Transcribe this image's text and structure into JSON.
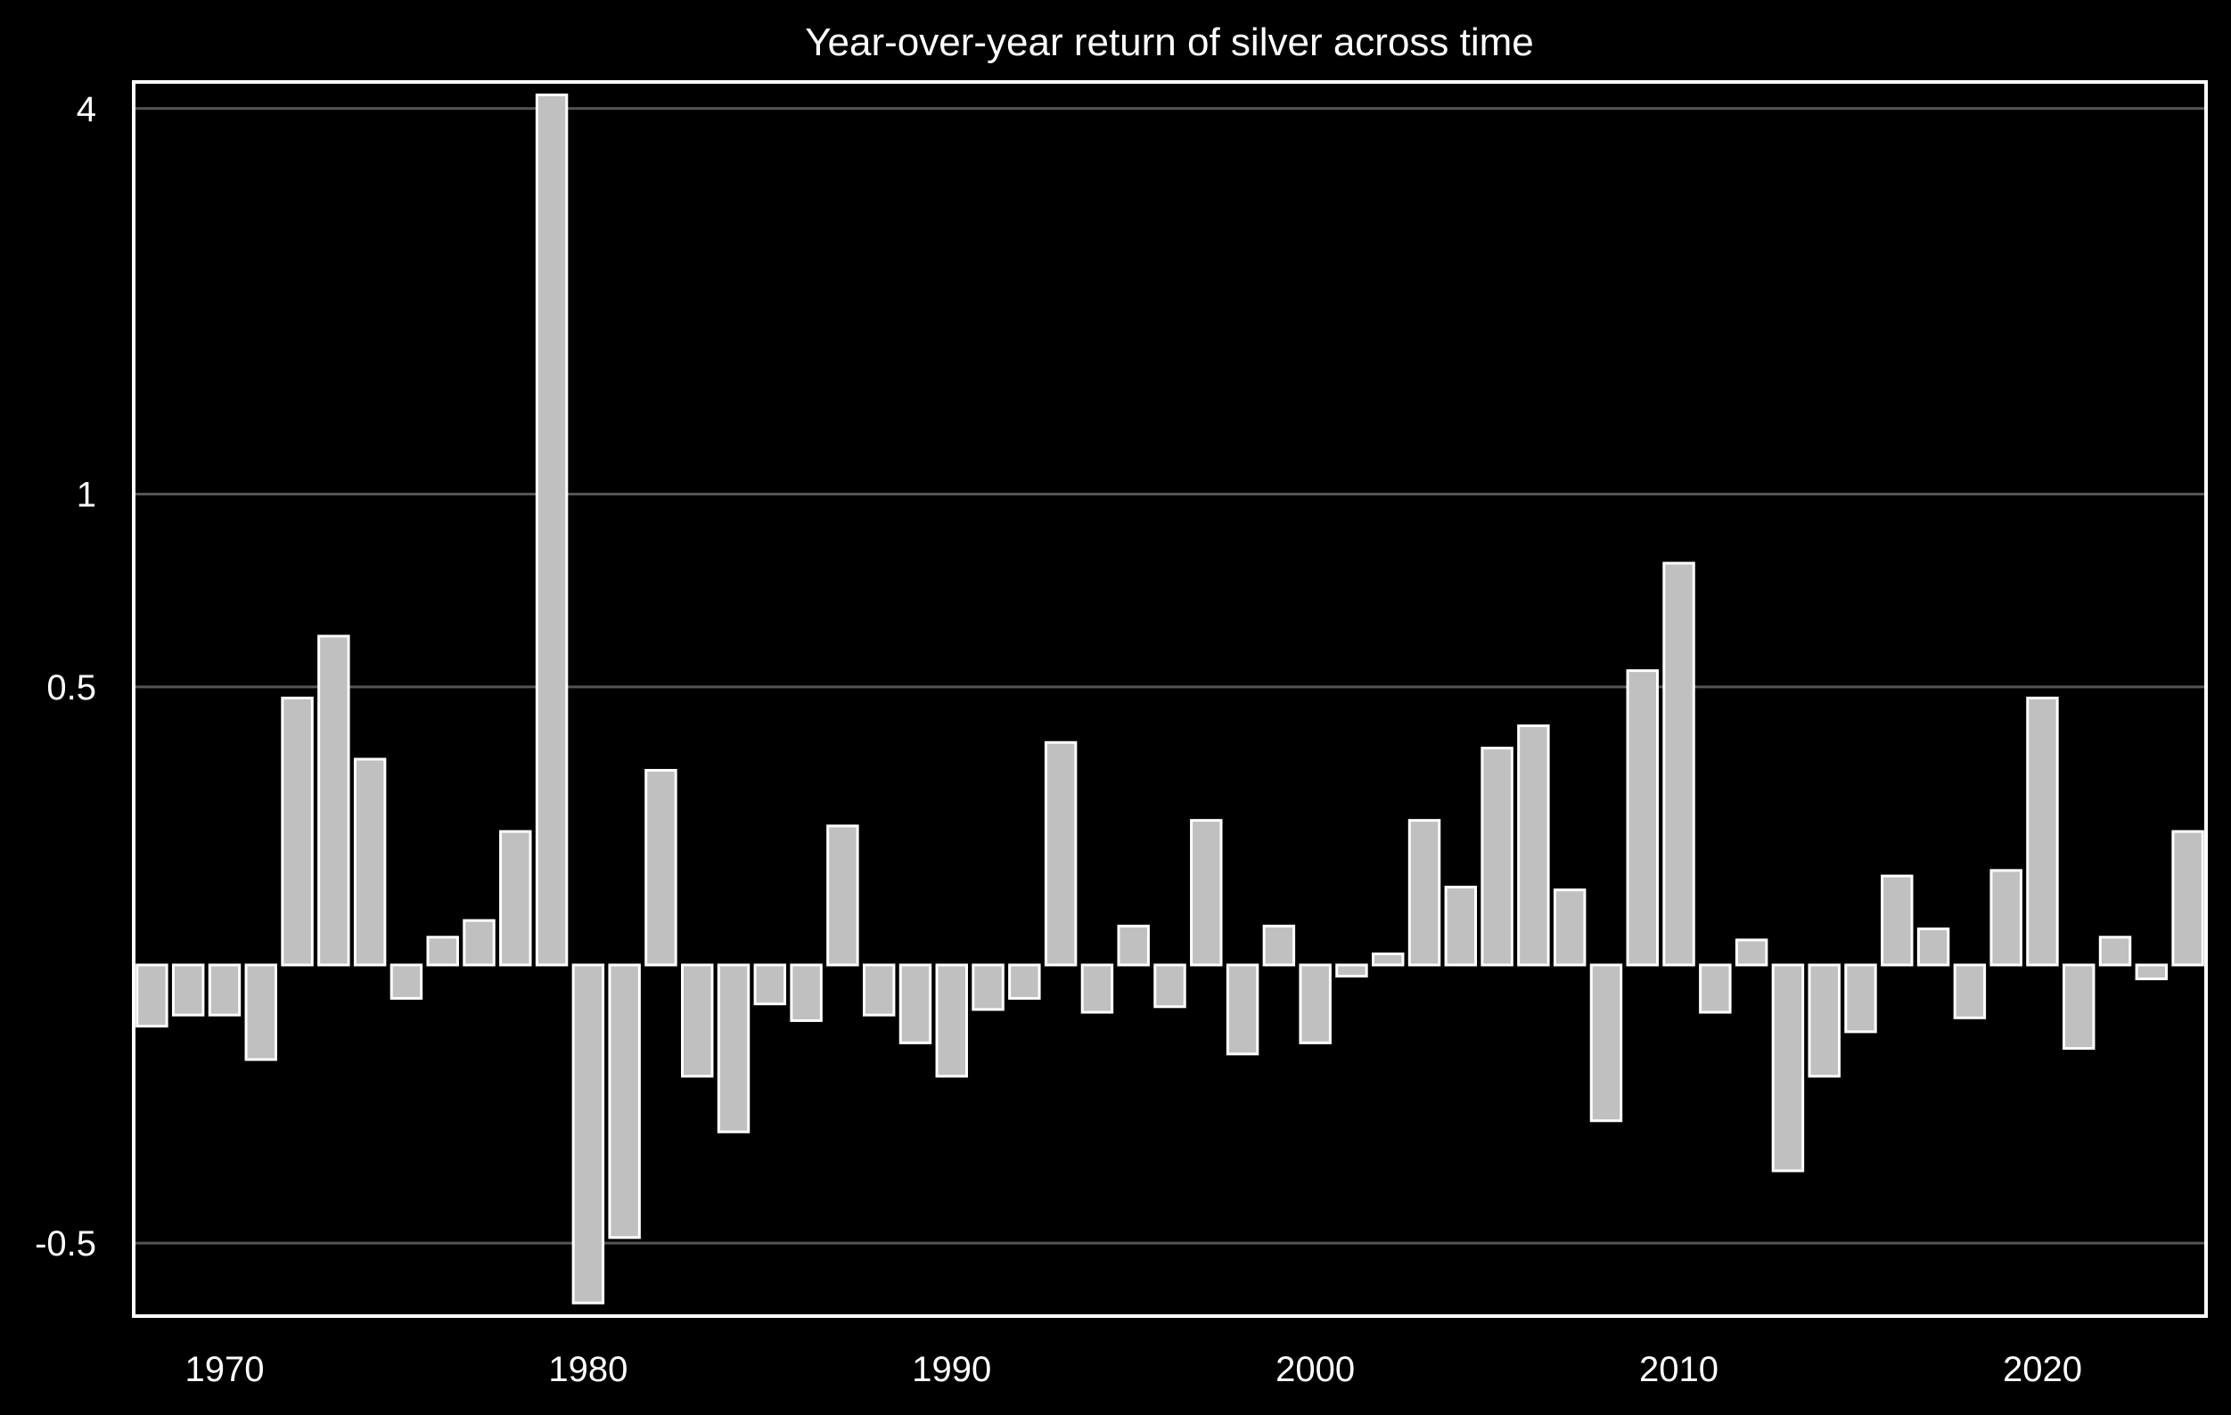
{
  "chart_data": {
    "type": "bar",
    "title": "Year-over-year return of silver across time",
    "xlabel": "",
    "ylabel": "",
    "y_scale": "symlog",
    "ylim": [
      -0.65,
      4.4
    ],
    "xlim": [
      1967.5,
      2024.5
    ],
    "grid": "horizontal",
    "yticks": [
      {
        "value": 4,
        "label": "4"
      },
      {
        "value": 1,
        "label": "1"
      },
      {
        "value": 0.5,
        "label": "0.5"
      },
      {
        "value": -0.5,
        "label": "-0.5"
      }
    ],
    "xticks": [
      {
        "value": 1970,
        "label": "1970"
      },
      {
        "value": 1980,
        "label": "1980"
      },
      {
        "value": 1990,
        "label": "1990"
      },
      {
        "value": 2000,
        "label": "2000"
      },
      {
        "value": 2010,
        "label": "2010"
      },
      {
        "value": 2020,
        "label": "2020"
      }
    ],
    "x": [
      1968,
      1969,
      1970,
      1971,
      1972,
      1973,
      1974,
      1975,
      1976,
      1977,
      1978,
      1979,
      1980,
      1981,
      1982,
      1983,
      1984,
      1985,
      1986,
      1987,
      1988,
      1989,
      1990,
      1991,
      1992,
      1993,
      1994,
      1995,
      1996,
      1997,
      1998,
      1999,
      2000,
      2001,
      2002,
      2003,
      2004,
      2005,
      2006,
      2007,
      2008,
      2009,
      2010,
      2011,
      2012,
      2013,
      2014,
      2015,
      2016,
      2017,
      2018,
      2019,
      2020,
      2021,
      2022,
      2023,
      2024
    ],
    "values": [
      -0.11,
      -0.09,
      -0.09,
      -0.17,
      0.48,
      0.6,
      0.37,
      -0.06,
      0.05,
      0.08,
      0.24,
      4.2,
      -0.62,
      -0.49,
      0.35,
      -0.2,
      -0.3,
      -0.07,
      -0.1,
      0.25,
      -0.09,
      -0.14,
      -0.2,
      -0.08,
      -0.06,
      0.4,
      -0.085,
      0.07,
      -0.075,
      0.26,
      -0.16,
      0.07,
      -0.14,
      -0.02,
      0.02,
      0.26,
      0.14,
      0.39,
      0.43,
      0.135,
      -0.28,
      0.53,
      0.78,
      -0.085,
      0.045,
      -0.37,
      -0.2,
      -0.12,
      0.16,
      0.065,
      -0.095,
      0.17,
      0.48,
      -0.15,
      0.05,
      -0.025,
      0.24
    ]
  }
}
